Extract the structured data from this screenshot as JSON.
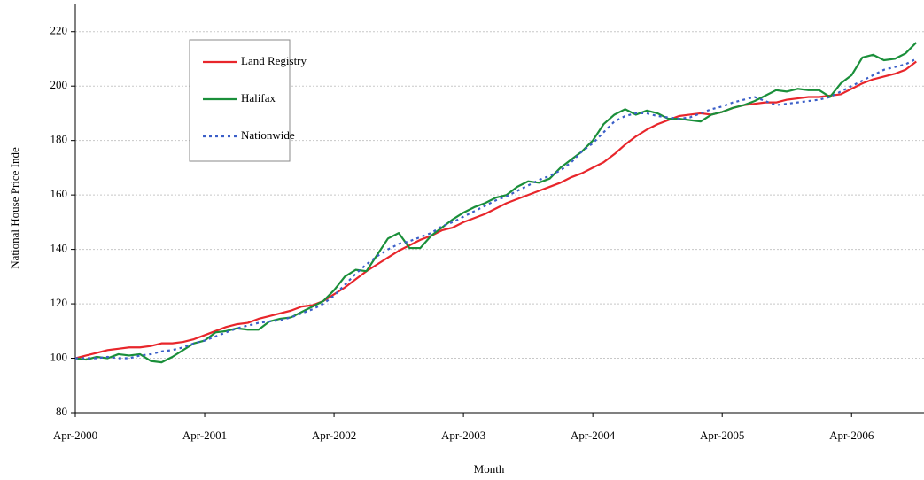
{
  "chart_data": {
    "type": "line",
    "x_label": "Month",
    "y_label": "National House Price Inde",
    "categories": [
      "Apr-2000",
      null,
      null,
      null,
      null,
      null,
      null,
      null,
      null,
      null,
      null,
      null,
      "Apr-2001",
      null,
      null,
      null,
      null,
      null,
      null,
      null,
      null,
      null,
      null,
      null,
      "Apr-2002",
      null,
      null,
      null,
      null,
      null,
      null,
      null,
      null,
      null,
      null,
      null,
      "Apr-2003",
      null,
      null,
      null,
      null,
      null,
      null,
      null,
      null,
      null,
      null,
      null,
      "Apr-2004",
      null,
      null,
      null,
      null,
      null,
      null,
      null,
      null,
      null,
      null,
      null,
      "Apr-2005",
      null,
      null,
      null,
      null,
      null,
      null,
      null,
      null,
      null,
      null,
      null,
      "Apr-2006",
      null,
      null,
      null,
      null,
      null,
      null
    ],
    "ylim": [
      80,
      230
    ],
    "yticks": [
      80,
      100,
      120,
      140,
      160,
      180,
      200,
      220
    ],
    "grid": true,
    "legend": "upper left",
    "series": [
      {
        "name": "Land Registry",
        "color": "#e8262b",
        "style": "solid",
        "values": [
          100,
          101,
          102,
          103,
          103.5,
          104,
          104,
          104.5,
          105.5,
          105.5,
          106,
          107,
          108.5,
          110,
          111.5,
          112.5,
          113,
          114.5,
          115.5,
          116.5,
          117.5,
          119,
          119.5,
          121,
          123.5,
          126,
          129,
          132,
          134.5,
          137,
          139.5,
          141.5,
          143.5,
          145,
          147,
          148,
          150,
          151.5,
          153,
          155,
          157,
          158.5,
          160,
          161.5,
          163,
          164.5,
          166.5,
          168,
          170,
          172,
          175,
          178.5,
          181.5,
          184,
          186,
          187.5,
          189,
          189.5,
          190,
          189.5,
          190.5,
          192,
          193,
          193.5,
          194,
          194,
          195,
          195.5,
          196,
          196,
          196.5,
          197,
          199,
          201,
          202.5,
          203.5,
          204.5,
          206,
          209
        ]
      },
      {
        "name": "Halifax",
        "color": "#1a8f3a",
        "style": "solid",
        "values": [
          100,
          99.5,
          100.5,
          100,
          101.5,
          101,
          101.5,
          99,
          98.5,
          100.5,
          103,
          105.5,
          106.5,
          109.5,
          110,
          111,
          110.5,
          110.5,
          113.5,
          114.5,
          115,
          117,
          119,
          121,
          125,
          130,
          132.5,
          132,
          138,
          144,
          146,
          140.5,
          140.5,
          145,
          148,
          151,
          153.5,
          155.5,
          157,
          159,
          160,
          163,
          165,
          164.5,
          166,
          170,
          173,
          176,
          180,
          186,
          189.5,
          191.5,
          189.5,
          191,
          190,
          188,
          188,
          187.5,
          187,
          189.5,
          190.5,
          192,
          193,
          194.5,
          196.5,
          198.5,
          198,
          199,
          198.5,
          198.5,
          196,
          201,
          204,
          210.5,
          211.5,
          209.5,
          210,
          212,
          216
        ]
      },
      {
        "name": "Nationwide",
        "color": "#3b5fc8",
        "style": "dotted",
        "values": [
          100,
          100,
          100,
          100.5,
          100,
          100,
          101,
          101.5,
          102.5,
          103,
          104,
          105.5,
          106.5,
          108,
          109.5,
          111,
          112,
          113,
          113.5,
          114,
          115,
          116.5,
          118,
          120,
          123,
          127,
          131,
          134.5,
          137.5,
          140,
          142,
          143,
          144.5,
          146,
          148.5,
          150,
          152,
          154,
          156,
          158,
          159.5,
          161.5,
          163.5,
          165.5,
          167,
          169,
          172,
          176,
          179,
          183,
          187,
          189,
          190,
          190,
          189,
          188.5,
          188,
          188.5,
          190,
          191.5,
          192.5,
          194,
          195,
          196,
          194.5,
          193,
          193.5,
          194,
          194.5,
          195,
          196,
          198,
          200,
          202,
          204,
          206,
          207,
          208,
          210
        ]
      }
    ]
  }
}
